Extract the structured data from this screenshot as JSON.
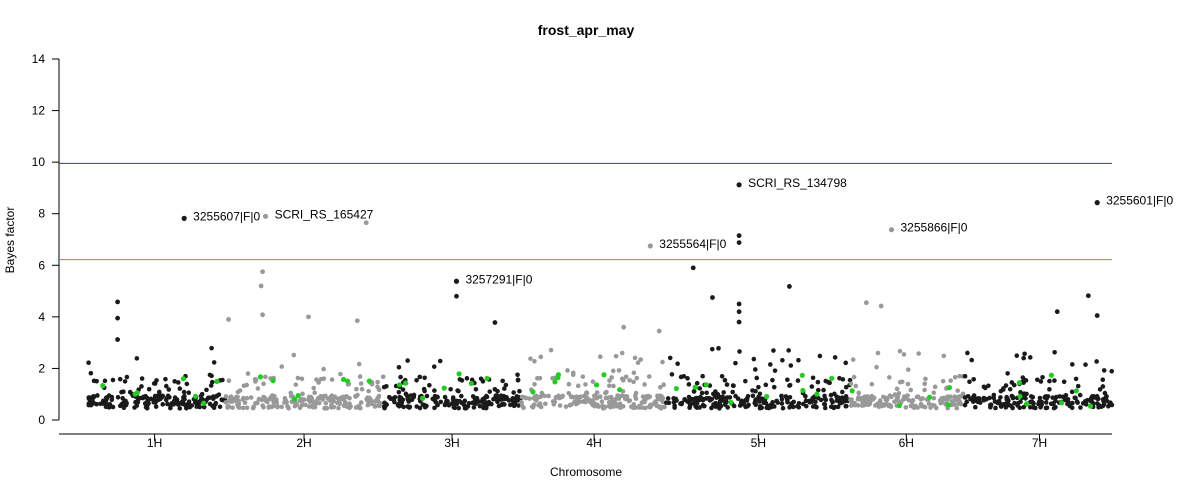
{
  "chart_data": {
    "type": "scatter",
    "title": "frost_apr_may",
    "xlabel": "Chromosome",
    "ylabel": "Bayes factor",
    "ylim": [
      0,
      14
    ],
    "yticks": [
      0,
      2,
      4,
      6,
      8,
      10,
      12,
      14
    ],
    "chromosomes": [
      {
        "label": "1H",
        "start": 0.0,
        "end": 0.93,
        "tick": 0.45,
        "shade": "black"
      },
      {
        "label": "2H",
        "start": 0.93,
        "end": 2.0,
        "tick": 1.46,
        "shade": "gray"
      },
      {
        "label": "3H",
        "start": 2.0,
        "end": 2.93,
        "tick": 2.46,
        "shade": "black"
      },
      {
        "label": "4H",
        "start": 2.93,
        "end": 3.9,
        "tick": 3.42,
        "shade": "gray"
      },
      {
        "label": "5H",
        "start": 3.9,
        "end": 5.15,
        "tick": 4.53,
        "shade": "black"
      },
      {
        "label": "6H",
        "start": 5.15,
        "end": 5.92,
        "tick": 5.53,
        "shade": "gray"
      },
      {
        "label": "7H",
        "start": 5.92,
        "end": 6.92,
        "tick": 6.43,
        "shade": "black"
      }
    ],
    "thresholds": [
      {
        "value": 9.95,
        "color": "#3333aa"
      },
      {
        "value": 6.22,
        "color": "#e06060"
      }
    ],
    "colors": {
      "black": "#1a1a1a",
      "gray": "#999999",
      "highlight": "#22cc22"
    },
    "labeled_points": [
      {
        "x": 0.65,
        "y": 7.82,
        "label": "3255607|F|0",
        "shade": "black"
      },
      {
        "x": 1.2,
        "y": 7.9,
        "label": "SCRI_RS_165427",
        "shade": "gray"
      },
      {
        "x": 2.49,
        "y": 5.38,
        "label": "3257291|F|0",
        "shade": "black"
      },
      {
        "x": 3.8,
        "y": 6.75,
        "label": "3255564|F|0",
        "shade": "gray"
      },
      {
        "x": 4.4,
        "y": 9.12,
        "label": "SCRI_RS_134798",
        "shade": "black"
      },
      {
        "x": 5.43,
        "y": 7.38,
        "label": "3255866|F|0",
        "shade": "gray"
      },
      {
        "x": 6.82,
        "y": 8.43,
        "label": "3255601|F|0",
        "shade": "black"
      }
    ],
    "notable_points": [
      {
        "x": 0.2,
        "y": 4.58
      },
      {
        "x": 0.2,
        "y": 3.95
      },
      {
        "x": 0.2,
        "y": 3.12
      },
      {
        "x": 0.95,
        "y": 3.9
      },
      {
        "x": 1.18,
        "y": 5.75
      },
      {
        "x": 1.17,
        "y": 5.2
      },
      {
        "x": 1.18,
        "y": 4.08
      },
      {
        "x": 1.49,
        "y": 4.0
      },
      {
        "x": 1.88,
        "y": 7.65
      },
      {
        "x": 1.82,
        "y": 3.85
      },
      {
        "x": 2.49,
        "y": 4.8
      },
      {
        "x": 2.75,
        "y": 3.78
      },
      {
        "x": 3.62,
        "y": 3.6
      },
      {
        "x": 3.86,
        "y": 3.45
      },
      {
        "x": 4.09,
        "y": 5.9
      },
      {
        "x": 4.22,
        "y": 4.75
      },
      {
        "x": 4.4,
        "y": 7.15
      },
      {
        "x": 4.4,
        "y": 6.88
      },
      {
        "x": 4.4,
        "y": 4.5
      },
      {
        "x": 4.4,
        "y": 4.2
      },
      {
        "x": 4.4,
        "y": 3.8
      },
      {
        "x": 4.74,
        "y": 5.18
      },
      {
        "x": 5.26,
        "y": 4.55
      },
      {
        "x": 5.36,
        "y": 4.42
      },
      {
        "x": 6.55,
        "y": 4.2
      },
      {
        "x": 6.76,
        "y": 4.82
      },
      {
        "x": 6.82,
        "y": 4.05
      }
    ]
  }
}
